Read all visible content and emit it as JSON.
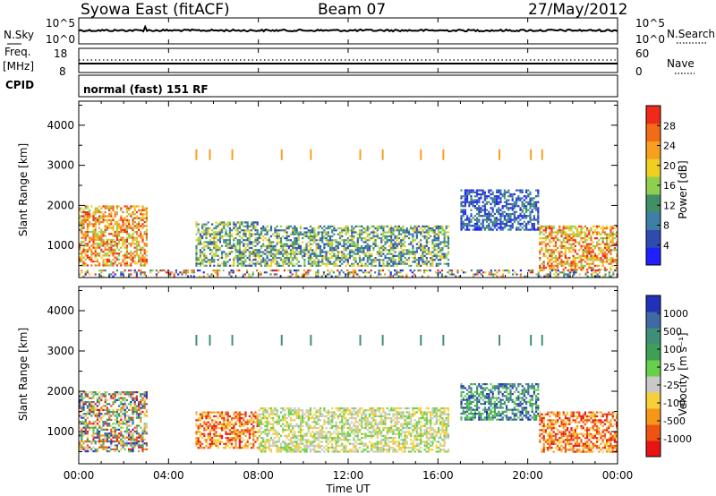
{
  "header": {
    "site": "Syowa East (fitACF)",
    "beam": "Beam 07",
    "date": "27/May/2012"
  },
  "noise_panel": {
    "left_label": "N.Sky",
    "left_ticks": [
      "10^5",
      "10^0"
    ],
    "right_ticks": [
      "10^5",
      "10^0"
    ],
    "right_label": "N.Search"
  },
  "freq_panel": {
    "left_label_1": "Freq.",
    "left_label_2": "[MHz]",
    "left_ticks": [
      "18",
      "8"
    ],
    "right_ticks": [
      "60",
      "0"
    ],
    "right_label": "Nave"
  },
  "cpid": {
    "label": "CPID",
    "value": "normal (fast) 151 RF"
  },
  "x_axis": {
    "ticks": [
      "00:00",
      "04:00",
      "08:00",
      "12:00",
      "16:00",
      "20:00",
      "00:00"
    ],
    "title": "Time UT"
  },
  "chart_data": [
    {
      "type": "heatmap",
      "title": "",
      "ylabel": "Slant Range [km]",
      "xlim": [
        0,
        24
      ],
      "ylim": [
        200,
        4600
      ],
      "yticks": [
        1000,
        2000,
        3000,
        4000
      ],
      "colorbar": {
        "label": "Power [dB]",
        "ticks": [
          "4",
          "8",
          "12",
          "16",
          "20",
          "24",
          "28"
        ],
        "range": [
          0,
          30
        ],
        "colors": [
          "#1f1fff",
          "#2e4cb0",
          "#3f7fa6",
          "#3f8f67",
          "#8fcf4f",
          "#efcf1f",
          "#f7a01f",
          "#f36b17",
          "#f02a18"
        ]
      },
      "regions": [
        {
          "x": [
            0.0,
            3.0
          ],
          "y": [
            500,
            2000
          ],
          "level": "high"
        },
        {
          "x": [
            5.2,
            8.0
          ],
          "y": [
            500,
            1600
          ],
          "level": "mid"
        },
        {
          "x": [
            8.0,
            16.5
          ],
          "y": [
            500,
            1500
          ],
          "level": "mid"
        },
        {
          "x": [
            17.0,
            20.5
          ],
          "y": [
            1400,
            2400
          ],
          "level": "low"
        },
        {
          "x": [
            20.5,
            24.0
          ],
          "y": [
            400,
            1500
          ],
          "level": "high"
        },
        {
          "x": [
            0.0,
            24.0
          ],
          "y": [
            250,
            400
          ],
          "level": "mixed"
        }
      ]
    },
    {
      "type": "heatmap",
      "title": "",
      "ylabel": "Slant Range [km]",
      "xlim": [
        0,
        24
      ],
      "ylim": [
        200,
        4600
      ],
      "yticks": [
        1000,
        2000,
        3000,
        4000
      ],
      "colorbar": {
        "label": "Velocity [m s⁻¹]",
        "ticks": [
          "1000",
          "500",
          "100",
          "25",
          "-25",
          "-100",
          "-500",
          "-1000"
        ],
        "range": [
          -1200,
          1200
        ],
        "colors": [
          "#e81414",
          "#ee5312",
          "#f7971a",
          "#f7cf38",
          "#c8c8c8",
          "#67d04a",
          "#3f9f55",
          "#3f8f78",
          "#3f6aa6",
          "#2231b8"
        ]
      },
      "regions": [
        {
          "x": [
            0.0,
            3.0
          ],
          "y": [
            500,
            2000
          ],
          "level": "mixed"
        },
        {
          "x": [
            5.2,
            8.0
          ],
          "y": [
            600,
            1500
          ],
          "level": "negative"
        },
        {
          "x": [
            8.0,
            16.5
          ],
          "y": [
            500,
            1600
          ],
          "level": "near-zero"
        },
        {
          "x": [
            17.0,
            20.5
          ],
          "y": [
            1300,
            2200
          ],
          "level": "positive"
        },
        {
          "x": [
            20.5,
            24.0
          ],
          "y": [
            500,
            1500
          ],
          "level": "negative"
        }
      ]
    }
  ]
}
